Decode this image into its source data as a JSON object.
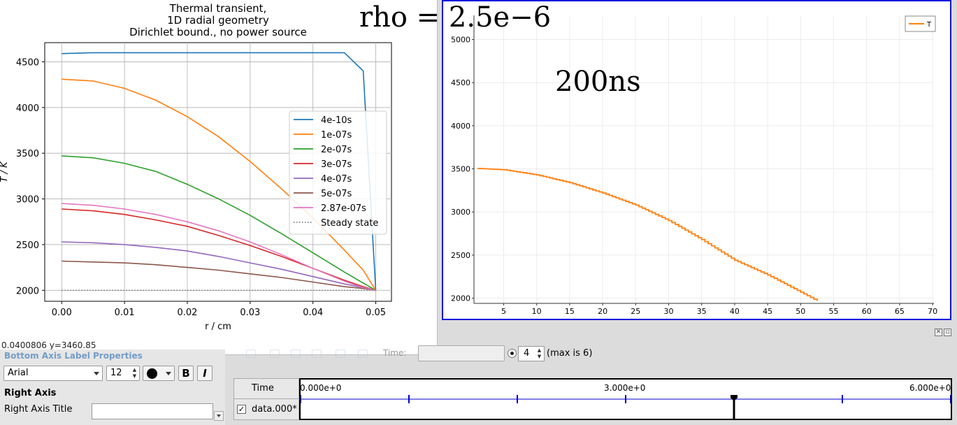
{
  "left_plot": {
    "title_lines": [
      "Thermal transient,",
      "1D radial geometry",
      "Dirichlet bound., no power source"
    ],
    "xlabel": "r / cm",
    "ylabel": "T / K",
    "x_ticks": [
      "0.00",
      "0.01",
      "0.02",
      "0.03",
      "0.04",
      "0.05"
    ],
    "y_ticks": [
      "2000",
      "2500",
      "3000",
      "3500",
      "4000",
      "4500"
    ],
    "legend": [
      {
        "label": "4e-10s",
        "color": "#1f77b4",
        "dash": false
      },
      {
        "label": "1e-07s",
        "color": "#ff7f0e",
        "dash": false
      },
      {
        "label": "2e-07s",
        "color": "#2ca02c",
        "dash": false
      },
      {
        "label": "3e-07s",
        "color": "#d62728",
        "dash": false
      },
      {
        "label": "4e-07s",
        "color": "#9467bd",
        "dash": false
      },
      {
        "label": "5e-07s",
        "color": "#8c564b",
        "dash": false
      },
      {
        "label": "2.87e-07s",
        "color": "#e377c2",
        "dash": false
      },
      {
        "label": "Steady state",
        "color": "#7f7f7f",
        "dash": true
      }
    ],
    "coord_readout": "0.0400806   y=3460.85"
  },
  "overlays": {
    "rho": "rho = 2.5e−6",
    "time": "200ns"
  },
  "chart_data": [
    {
      "type": "line",
      "title": "Thermal transient, 1D radial geometry Dirichlet bound., no power source",
      "xlabel": "r / cm",
      "ylabel": "T / K",
      "xlim": [
        -0.0027,
        0.0525
      ],
      "ylim": [
        1880,
        4710
      ],
      "x": [
        0.0,
        0.005,
        0.01,
        0.015,
        0.02,
        0.025,
        0.03,
        0.035,
        0.04,
        0.045,
        0.048,
        0.05
      ],
      "series": [
        {
          "name": "4e-10s",
          "values": [
            4590,
            4600,
            4600,
            4600,
            4600,
            4600,
            4600,
            4600,
            4600,
            4600,
            4400,
            2000
          ]
        },
        {
          "name": "1e-07s",
          "values": [
            4310,
            4290,
            4210,
            4080,
            3900,
            3680,
            3410,
            3110,
            2790,
            2440,
            2220,
            2000
          ]
        },
        {
          "name": "2e-07s",
          "values": [
            3470,
            3450,
            3390,
            3300,
            3160,
            3000,
            2820,
            2620,
            2410,
            2200,
            2080,
            2000
          ]
        },
        {
          "name": "3e-07s",
          "values": [
            2890,
            2870,
            2830,
            2770,
            2700,
            2600,
            2490,
            2370,
            2240,
            2110,
            2040,
            2000
          ]
        },
        {
          "name": "4e-07s",
          "values": [
            2530,
            2520,
            2500,
            2470,
            2430,
            2370,
            2300,
            2230,
            2150,
            2070,
            2030,
            2000
          ]
        },
        {
          "name": "5e-07s",
          "values": [
            2320,
            2310,
            2300,
            2280,
            2250,
            2220,
            2180,
            2140,
            2090,
            2040,
            2020,
            2000
          ]
        },
        {
          "name": "2.87e-07s",
          "values": [
            2950,
            2930,
            2890,
            2830,
            2750,
            2650,
            2530,
            2390,
            2240,
            2100,
            2030,
            2000
          ]
        },
        {
          "name": "Steady state",
          "values": [
            2000,
            2000,
            2000,
            2000,
            2000,
            2000,
            2000,
            2000,
            2000,
            2000,
            2000,
            2000
          ]
        }
      ]
    },
    {
      "type": "line",
      "legend": [
        "T"
      ],
      "xlim": [
        0.5,
        70.2
      ],
      "ylim": [
        1940,
        5280
      ],
      "x_ticks": [
        "5",
        "10",
        "15",
        "20",
        "25",
        "30",
        "35",
        "40",
        "45",
        "50",
        "55",
        "60",
        "65",
        "70"
      ],
      "y_ticks": [
        "2000",
        "2500",
        "3000",
        "3500",
        "4000",
        "4500",
        "5000"
      ],
      "grid": true,
      "legend_position": "top-right",
      "series": [
        {
          "name": "T",
          "color": "#ff7f0e",
          "x": [
            1,
            5,
            10,
            15,
            20,
            25,
            30,
            35,
            40,
            45,
            50,
            52.7
          ],
          "values": [
            3505,
            3490,
            3430,
            3340,
            3220,
            3080,
            2900,
            2680,
            2440,
            2270,
            2070,
            1960
          ]
        }
      ]
    }
  ],
  "properties_panel": {
    "title": "Bottom Axis Label Properties",
    "font_family": "Arial",
    "font_size": "12",
    "bold_label": "B",
    "italic_label": "I",
    "section": "Right Axis",
    "right_axis_title_label": "Right Axis Title",
    "right_axis_title_value": ""
  },
  "animation": {
    "time_label": "Time:",
    "timestep": "4",
    "max_label": "(max is 6)"
  },
  "time_inspector": {
    "time_header": "Time",
    "row_name": "data.000*",
    "row_checked": "✓",
    "ticks": [
      "0.000e+0",
      "3.000e+0",
      "6.000e+0"
    ]
  },
  "window_buttons": {
    "float": "▫",
    "close": "✕"
  }
}
